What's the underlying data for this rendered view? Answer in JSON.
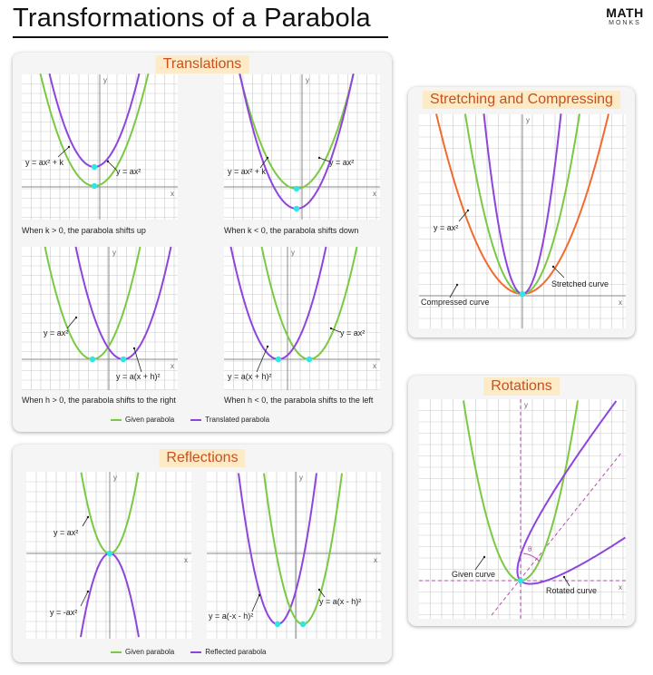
{
  "title": "Transformations of a Parabola",
  "logo": {
    "main": "MATH",
    "sub": "MONKS"
  },
  "colors": {
    "given": "#7ac943",
    "transformed": "#8e44dd",
    "compressed": "#f26a2e",
    "vertex": "#2ee6e6"
  },
  "translations": {
    "title": "Translations",
    "graphs": [
      {
        "caption": "When k > 0, the parabola shifts up",
        "label_given": "y = ax² + k",
        "label_other": "y = ax²",
        "axis_y": "y",
        "axis_x": "x"
      },
      {
        "caption": "When k < 0, the parabola shifts down",
        "label_given": "y = ax² + k",
        "label_other": "y = ax²",
        "axis_y": "y",
        "axis_x": "x"
      },
      {
        "caption": "When h > 0, the parabola shifts to the right",
        "label_given": "y = ax²",
        "label_other": "y = a(x + h)²",
        "axis_y": "y",
        "axis_x": "x"
      },
      {
        "caption": "When h < 0, the parabola shifts to the left",
        "label_given": "y = a(x + h)²",
        "label_other": "y = ax²",
        "axis_y": "y",
        "axis_x": "x"
      }
    ],
    "legend": {
      "given": "Given parabola",
      "other": "Translated parabola"
    }
  },
  "reflections": {
    "title": "Reflections",
    "graphs": [
      {
        "label_top": "y = ax²",
        "label_bottom": "y = -ax²",
        "axis_y": "y",
        "axis_x": "x"
      },
      {
        "label_left": "y = a(-x - h)²",
        "label_right": "y = a(x - h)²",
        "axis_y": "y",
        "axis_x": "x"
      }
    ],
    "legend": {
      "given": "Given parabola",
      "other": "Reflected parabola"
    }
  },
  "stretching": {
    "title": "Stretching and Compressing",
    "label_base": "y = ax²",
    "label_stretched": "Stretched curve",
    "label_compressed": "Compressed curve",
    "axis_y": "y",
    "axis_x": "x"
  },
  "rotations": {
    "title": "Rotations",
    "label_given": "Given curve",
    "label_rotated": "Rotated curve",
    "angle": "θ",
    "axis_y": "y",
    "axis_x": "x"
  }
}
